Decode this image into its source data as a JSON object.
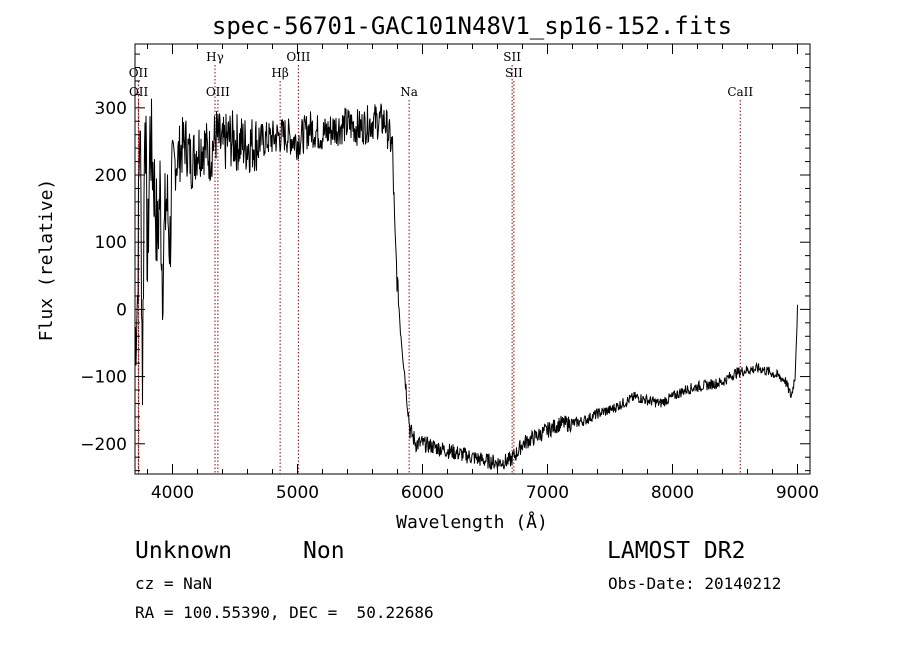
{
  "chart_data": {
    "type": "line",
    "title": "spec-56701-GAC101N48V1_sp16-152.fits",
    "xlabel": "Wavelength (Å)",
    "ylabel": "Flux (relative)",
    "xlim": [
      3700,
      9100
    ],
    "ylim": [
      -245,
      395
    ],
    "xticks": [
      4000,
      5000,
      6000,
      7000,
      8000,
      9000
    ],
    "yticks": [
      -200,
      -100,
      0,
      100,
      200,
      300
    ],
    "xtick_labels": [
      "4000",
      "5000",
      "6000",
      "7000",
      "8000",
      "9000"
    ],
    "ytick_labels": [
      "−200",
      "−100",
      "0",
      "100",
      "200",
      "300"
    ],
    "grid": false,
    "line_color": "#000000",
    "marker_color": "#990000",
    "series": [
      {
        "x": [
          3700,
          3720,
          3740,
          3760,
          3780,
          3800,
          3820,
          3850,
          3880,
          3900,
          3920,
          3950,
          3980,
          4000,
          4050,
          4100,
          4150,
          4200,
          4250,
          4300,
          4350,
          4400,
          4450,
          4500,
          4600,
          4700,
          4800,
          4900,
          5000,
          5100,
          5200,
          5300,
          5400,
          5500,
          5600,
          5700,
          5760,
          5780,
          5800,
          5820,
          5840,
          5860,
          5880,
          5900,
          5950,
          6000,
          6100,
          6200,
          6300,
          6400,
          6500,
          6600,
          6700,
          6750,
          6800,
          6900,
          7000,
          7100,
          7200,
          7300,
          7400,
          7500,
          7600,
          7700,
          7800,
          7900,
          8000,
          8100,
          8200,
          8300,
          8400,
          8500,
          8600,
          8700,
          8800,
          8900,
          8950,
          8980,
          9000
        ],
        "y": [
          -50,
          20,
          300,
          -100,
          330,
          50,
          260,
          200,
          100,
          180,
          50,
          170,
          100,
          210,
          230,
          250,
          220,
          240,
          245,
          230,
          260,
          240,
          255,
          250,
          245,
          250,
          255,
          260,
          250,
          270,
          260,
          270,
          275,
          270,
          280,
          280,
          240,
          100,
          40,
          -20,
          -60,
          -100,
          -140,
          -180,
          -200,
          -200,
          -205,
          -210,
          -215,
          -220,
          -225,
          -228,
          -225,
          -215,
          -200,
          -190,
          -180,
          -170,
          -170,
          -165,
          -155,
          -150,
          -140,
          -130,
          -135,
          -140,
          -130,
          -120,
          -115,
          -112,
          -108,
          -95,
          -90,
          -88,
          -95,
          -105,
          -130,
          -100,
          0
        ]
      }
    ],
    "lines": [
      {
        "label": "OII",
        "x": 3727,
        "row": 2
      },
      {
        "label": "OII",
        "x": 3729,
        "row": 3
      },
      {
        "label": "Hγ",
        "x": 4340,
        "row": 1
      },
      {
        "label": "OIII",
        "x": 4363,
        "row": 3
      },
      {
        "label": "Hβ",
        "x": 4861,
        "row": 2
      },
      {
        "label": "OIII",
        "x": 5007,
        "row": 1
      },
      {
        "label": "Na",
        "x": 5893,
        "row": 3
      },
      {
        "label": "SII",
        "x": 6717,
        "row": 1
      },
      {
        "label": "SII",
        "x": 6731,
        "row": 2
      },
      {
        "label": "CaII",
        "x": 8542,
        "row": 3
      }
    ]
  },
  "footer": {
    "object_class": "Unknown",
    "subclass": "Non",
    "survey": "LAMOST DR2",
    "cz": "cz = NaN",
    "obs_date": "Obs-Date: 20140212",
    "coords": "RA = 100.55390, DEC =  50.22686"
  }
}
